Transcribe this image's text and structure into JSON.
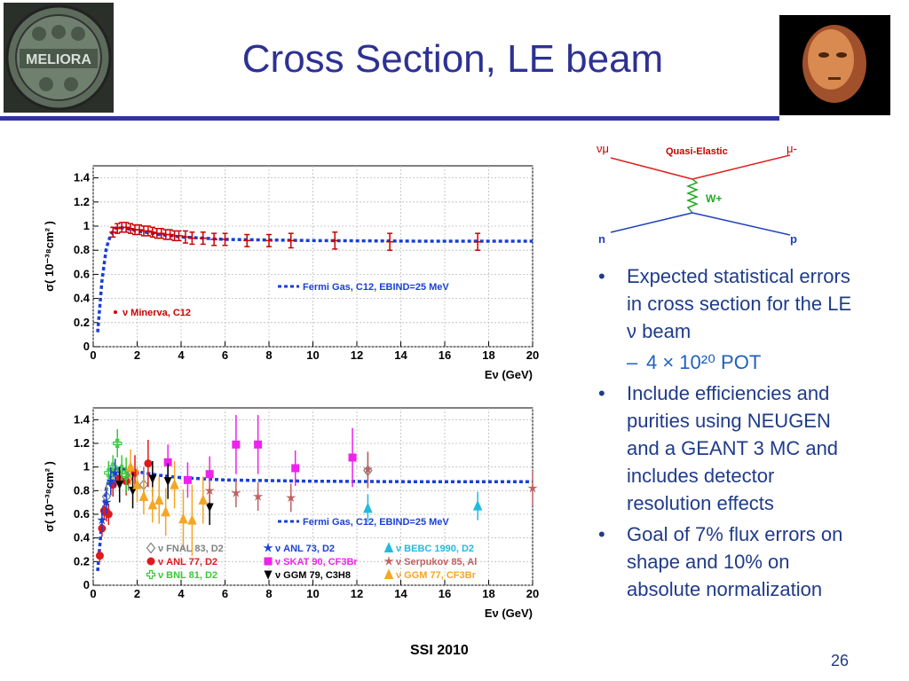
{
  "slide": {
    "title": "Cross Section, LE beam",
    "footer": "SSI 2010",
    "page_number": "26",
    "logo_text": "MELIORA"
  },
  "diagram": {
    "label_top": "Quasi-Elastic",
    "in_top": "νμ",
    "out_top": "μ-",
    "boson": "W+",
    "in_bottom": "n",
    "out_bottom": "p"
  },
  "bullets": [
    {
      "text": "Expected statistical errors in cross section for the LE ν beam",
      "sub": "4 × 10²⁰ POT"
    },
    {
      "text": "Include efficiencies and purities using NEUGEN and a GEANT 3 MC and includes detector resolution effects"
    },
    {
      "text": "Goal of 7% flux errors on shape and 10% on absolute normalization"
    }
  ],
  "colors": {
    "title": "#2e3192",
    "bullet": "#1f3b8a",
    "fit": "#1a3fd6",
    "minerva": "#cc0000"
  },
  "chart_data": [
    {
      "type": "scatter",
      "ylabel": "σ( 10⁻³⁸cm² )",
      "xlabel": "Eν (GeV)",
      "xlim": [
        0,
        20
      ],
      "ylim": [
        0,
        1.5
      ],
      "x_ticks": [
        0,
        2,
        4,
        6,
        8,
        10,
        12,
        14,
        16,
        18,
        20
      ],
      "y_ticks": [
        0,
        0.2,
        0.4,
        0.6,
        0.8,
        1,
        1.2,
        1.4
      ],
      "fit_label": "Fermi Gas, C12, EBIND=25 MeV",
      "fit_curve": {
        "x": [
          0.2,
          0.4,
          0.6,
          0.8,
          1.0,
          1.2,
          1.5,
          2,
          3,
          4,
          6,
          10,
          15,
          20
        ],
        "y": [
          0.12,
          0.55,
          0.82,
          0.93,
          0.98,
          0.99,
          0.98,
          0.96,
          0.93,
          0.91,
          0.89,
          0.88,
          0.875,
          0.875
        ]
      },
      "series": [
        {
          "name": "ν Minerva, C12",
          "color": "#cc0000",
          "x": [
            0.9,
            1.1,
            1.3,
            1.5,
            1.7,
            1.9,
            2.1,
            2.3,
            2.5,
            2.7,
            2.9,
            3.1,
            3.3,
            3.5,
            3.7,
            3.9,
            4.2,
            4.5,
            5,
            5.5,
            6,
            7,
            8,
            9,
            11,
            13.5,
            17.5
          ],
          "y": [
            0.95,
            0.98,
            0.99,
            0.99,
            0.98,
            0.97,
            0.97,
            0.96,
            0.96,
            0.95,
            0.94,
            0.94,
            0.93,
            0.93,
            0.92,
            0.92,
            0.91,
            0.9,
            0.9,
            0.89,
            0.89,
            0.88,
            0.88,
            0.88,
            0.88,
            0.87,
            0.87
          ],
          "err": [
            0.04,
            0.04,
            0.04,
            0.04,
            0.04,
            0.04,
            0.04,
            0.04,
            0.04,
            0.04,
            0.04,
            0.04,
            0.04,
            0.04,
            0.04,
            0.04,
            0.05,
            0.05,
            0.05,
            0.05,
            0.05,
            0.05,
            0.05,
            0.06,
            0.07,
            0.07,
            0.07
          ]
        }
      ]
    },
    {
      "type": "scatter",
      "ylabel": "σ( 10⁻³⁸cm² )",
      "xlabel": "Eν (GeV)",
      "xlim": [
        0,
        20
      ],
      "ylim": [
        0,
        1.5
      ],
      "x_ticks": [
        0,
        2,
        4,
        6,
        8,
        10,
        12,
        14,
        16,
        18,
        20
      ],
      "y_ticks": [
        0,
        0.2,
        0.4,
        0.6,
        0.8,
        1,
        1.2,
        1.4
      ],
      "fit_label": "Fermi Gas, C12, EBIND=25 MeV",
      "fit_curve": {
        "x": [
          0.2,
          0.4,
          0.6,
          0.8,
          1.0,
          1.2,
          1.5,
          2,
          3,
          4,
          6,
          10,
          15,
          20
        ],
        "y": [
          0.12,
          0.55,
          0.82,
          0.93,
          0.98,
          0.99,
          0.98,
          0.96,
          0.93,
          0.91,
          0.89,
          0.88,
          0.875,
          0.875
        ]
      },
      "series": [
        {
          "name": "ν FNAL 83, D2",
          "color": "#808080",
          "marker": "diamond",
          "x": [
            0.6,
            1.0,
            1.6,
            2.3,
            12.5
          ],
          "y": [
            0.75,
            0.95,
            0.9,
            0.85,
            0.97
          ],
          "err": [
            0.1,
            0.1,
            0.1,
            0.15,
            0.15
          ]
        },
        {
          "name": "ν ANL 77, D2",
          "color": "#e0191b",
          "marker": "circle",
          "x": [
            0.3,
            0.4,
            0.5,
            0.6,
            0.7,
            0.9,
            1.2,
            1.5,
            1.9,
            2.5
          ],
          "y": [
            0.25,
            0.48,
            0.63,
            0.62,
            0.6,
            0.85,
            0.9,
            0.88,
            0.95,
            1.03
          ],
          "err": [
            0.05,
            0.07,
            0.08,
            0.08,
            0.09,
            0.1,
            0.1,
            0.12,
            0.15,
            0.2
          ]
        },
        {
          "name": "ν BNL 81, D2",
          "color": "#33cc33",
          "marker": "cross",
          "x": [
            0.7,
            0.9,
            1.1,
            1.3,
            1.5
          ],
          "y": [
            0.95,
            1.0,
            1.2,
            0.98,
            0.93
          ],
          "err": [
            0.1,
            0.1,
            0.12,
            0.12,
            0.15
          ]
        },
        {
          "name": "ν ANL 73, D2",
          "color": "#1a3fd6",
          "marker": "star",
          "x": [
            0.4,
            0.6,
            0.8,
            1.0
          ],
          "y": [
            0.55,
            0.7,
            0.88,
            0.95
          ],
          "err": [
            0.1,
            0.1,
            0.12,
            0.12
          ]
        },
        {
          "name": "ν SKAT 90, CF3Br",
          "color": "#ee22ee",
          "marker": "square",
          "x": [
            3.4,
            4.3,
            5.3,
            6.5,
            7.5,
            9.2,
            11.8
          ],
          "y": [
            1.04,
            0.89,
            0.94,
            1.19,
            1.19,
            0.99,
            1.08
          ],
          "err": [
            0.15,
            0.15,
            0.15,
            0.25,
            0.25,
            0.15,
            0.25
          ]
        },
        {
          "name": "ν GGM 79, C3H8",
          "color": "#000000",
          "marker": "triangle-down",
          "x": [
            1.2,
            1.8,
            2.7,
            3.4,
            5.3
          ],
          "y": [
            0.85,
            0.8,
            0.9,
            0.88,
            0.66
          ],
          "err": [
            0.15,
            0.15,
            0.15,
            0.15,
            0.15
          ]
        },
        {
          "name": "ν BEBC 1990, D2",
          "color": "#22bbdd",
          "marker": "triangle",
          "x": [
            12.5,
            17.5
          ],
          "y": [
            0.65,
            0.67
          ],
          "err": [
            0.12,
            0.12
          ]
        },
        {
          "name": "ν Serpukov 85, Al",
          "color": "#c06060",
          "marker": "star",
          "x": [
            5.3,
            6.5,
            7.5,
            9.0,
            12.5,
            20
          ],
          "y": [
            0.8,
            0.78,
            0.75,
            0.74,
            0.98,
            0.82
          ],
          "err": [
            0.1,
            0.12,
            0.12,
            0.12,
            0.15,
            0.15
          ]
        },
        {
          "name": "ν GGM 77, CF3Br",
          "color": "#f5a623",
          "marker": "triangle",
          "x": [
            1.7,
            2.0,
            2.3,
            2.7,
            3.0,
            3.3,
            3.7,
            4.1,
            4.5,
            5.0
          ],
          "y": [
            1.0,
            0.85,
            0.75,
            0.68,
            0.72,
            0.62,
            0.85,
            0.56,
            0.55,
            0.72
          ],
          "err": [
            0.15,
            0.15,
            0.15,
            0.15,
            0.2,
            0.2,
            0.2,
            0.25,
            0.3,
            0.2
          ]
        }
      ]
    }
  ]
}
